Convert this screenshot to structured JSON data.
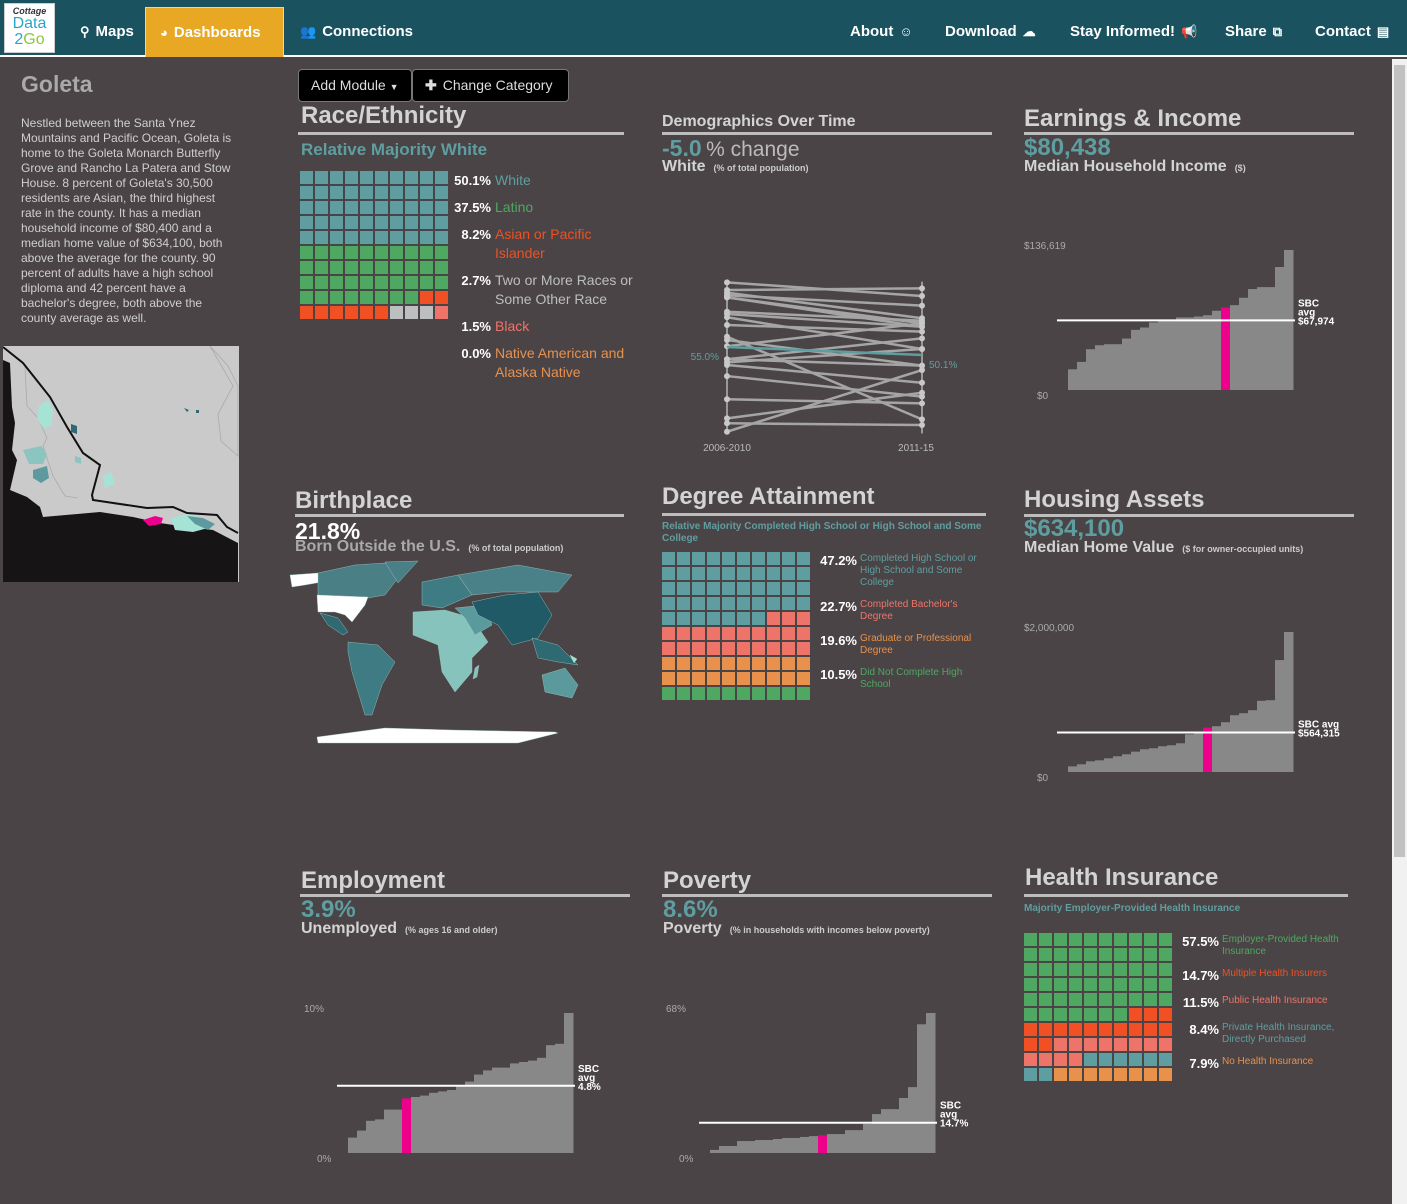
{
  "nav": {
    "logo": {
      "line1": "Cottage",
      "line2": "Data",
      "line3a": "2",
      "line3b": "Go"
    },
    "left": [
      {
        "label": "Maps",
        "icon": "map-marker-icon",
        "glyph": "⚲"
      },
      {
        "label": "Dashboards",
        "icon": "dashboard-icon",
        "glyph": "◕",
        "active": true
      },
      {
        "label": "Connections",
        "icon": "users-icon",
        "glyph": "👥"
      }
    ],
    "right": [
      {
        "label": "About",
        "icon": "user-circle-icon",
        "glyph": "☺"
      },
      {
        "label": "Download",
        "icon": "cloud-download-icon",
        "glyph": "☁"
      },
      {
        "label": "Stay Informed!",
        "icon": "bullhorn-icon",
        "glyph": "📢"
      },
      {
        "label": "Share",
        "icon": "share-square-icon",
        "glyph": "⧉"
      },
      {
        "label": "Contact",
        "icon": "address-card-icon",
        "glyph": "▤"
      }
    ],
    "colors": {
      "bar": "#1a5260",
      "active": "#e8a823"
    }
  },
  "sidebar": {
    "place": "Goleta",
    "description": "Nestled between the Santa Ynez Mountains and Pacific Ocean, Goleta is home to the Goleta Monarch Butterfly Grove and Rancho La Patera and Stow House. 8 percent of Goleta's 30,500 residents are Asian, the third highest rate in the county. It has a median household income of $80,400 and a median home value of $634,100, both above the average for the county. 90 percent of adults have a high school diploma and 42 percent have a bachelor's degree, both above the county average as well."
  },
  "toolbar": {
    "add_module": "Add Module",
    "change_category": "Change Category"
  },
  "race": {
    "title": "Race/Ethnicity",
    "subtitle": "Relative Majority White",
    "items": [
      {
        "value": "50.1%",
        "label": "White",
        "color": "#5f9ea0",
        "cells": 50
      },
      {
        "value": "37.5%",
        "label": "Latino",
        "color": "#4fa862",
        "cells": 38
      },
      {
        "value": "8.2%",
        "label": "Asian or Pacific Islander",
        "color": "#f05023",
        "cells": 8
      },
      {
        "value": "2.7%",
        "label": "Two or More Races or Some Other Race",
        "color": "#bdbec0",
        "cells": 3
      },
      {
        "value": "1.5%",
        "label": "Black",
        "color": "#ee746a",
        "cells": 1
      },
      {
        "value": "0.0%",
        "label": "Native American and Alaska Native",
        "color": "#e8914d",
        "cells": 0
      }
    ]
  },
  "demographics": {
    "title": "Demographics Over Time",
    "change_value": "-5.0",
    "change_suffix": "% change",
    "group": "White",
    "note": "(% of total population)",
    "chart_data": {
      "type": "line",
      "x": [
        "2006-2010",
        "2011-15"
      ],
      "highlight": {
        "start": 55.0,
        "end": 50.1,
        "start_label": "55.0%",
        "end_label": "50.1%",
        "color": "#5f9ea0"
      },
      "others": [
        [
          94.6,
          86.2
        ],
        [
          89.9,
          90.9
        ],
        [
          88.3,
          72.6
        ],
        [
          86.7,
          80.3
        ],
        [
          85.4,
          69.5
        ],
        [
          76.6,
          71.1
        ],
        [
          75.2,
          67.4
        ],
        [
          73.2,
          53.8
        ],
        [
          68.5,
          64.4
        ],
        [
          61.3,
          10.7
        ],
        [
          59.3,
          43.6
        ],
        [
          47.5,
          60.3
        ],
        [
          45.6,
          53.8
        ],
        [
          44.0,
          33.1
        ],
        [
          37.2,
          24.6
        ],
        [
          23.0,
          20.5
        ],
        [
          11.3,
          27.0
        ],
        [
          8.3,
          7.2
        ],
        [
          3.1,
          40.9
        ],
        [
          55.5,
          69.5
        ],
        [
          85.4,
          67.4
        ],
        [
          47.5,
          43.6
        ]
      ]
    }
  },
  "earnings": {
    "title": "Earnings & Income",
    "value": "$80,438",
    "label": "Median Household Income",
    "note": "($)",
    "chart_data": {
      "type": "bar",
      "ymax": 136619,
      "ymax_label": "$136,619",
      "ymin_label": "$0",
      "values": [
        20200,
        27400,
        39800,
        43700,
        44700,
        44700,
        50200,
        58700,
        61000,
        65900,
        67200,
        67200,
        70800,
        70800,
        71700,
        73000,
        77300,
        80438,
        82800,
        90000,
        98500,
        100400,
        100400,
        120000,
        136619
      ],
      "highlight_index": 17,
      "avg": 67974,
      "avg_label": [
        "SBC",
        "avg",
        "$67,974"
      ]
    }
  },
  "birthplace": {
    "title": "Birthplace",
    "value": "21.8%",
    "label": "Born Outside the U.S.",
    "note": "(% of total population)"
  },
  "degree": {
    "title": "Degree Attainment",
    "subtitle": "Relative Majority Completed High School or High School and Some College",
    "items": [
      {
        "value": "47.2%",
        "label": "Completed High School or High School and Some College",
        "color": "#5f9ea0",
        "cells": 47
      },
      {
        "value": "22.7%",
        "label": "Completed Bachelor's Degree",
        "color": "#ee746a",
        "cells": 23
      },
      {
        "value": "19.6%",
        "label": "Graduate or Professional Degree",
        "color": "#e8914d",
        "cells": 20
      },
      {
        "value": "10.5%",
        "label": "Did Not Complete High School",
        "color": "#4fa862",
        "cells": 10
      }
    ]
  },
  "housing": {
    "title": "Housing Assets",
    "value": "$634,100",
    "label": "Median Home Value",
    "note": "($ for owner-occupied units)",
    "chart_data": {
      "type": "bar",
      "ymax": 2000000,
      "ymax_label": "$2,000,000",
      "ymin_label": "$0",
      "values": [
        81000,
        110000,
        153000,
        167000,
        196000,
        224000,
        253000,
        291000,
        325000,
        339000,
        368000,
        382000,
        410000,
        539000,
        568000,
        634100,
        654000,
        711000,
        811000,
        840000,
        883000,
        1017000,
        1026000,
        1599000,
        2000000
      ],
      "highlight_index": 15,
      "avg": 564315,
      "avg_label": [
        "SBC avg",
        "$564,315"
      ]
    }
  },
  "employment": {
    "title": "Employment",
    "value": "3.9%",
    "label": "Unemployed",
    "note": "(% ages 16 and older)",
    "chart_data": {
      "type": "bar",
      "ymax": 10,
      "ymax_label": "10%",
      "ymin_label": "0%",
      "values": [
        1.1,
        1.6,
        2.3,
        2.4,
        3.1,
        3.1,
        3.9,
        4.0,
        4.1,
        4.3,
        4.4,
        4.5,
        4.8,
        5.1,
        5.6,
        5.9,
        6.1,
        6.1,
        6.4,
        6.5,
        6.6,
        6.8,
        7.7,
        7.8,
        10.0
      ],
      "highlight_index": 6,
      "avg": 4.8,
      "avg_label": [
        "SBC",
        "avg",
        "4.8%"
      ]
    }
  },
  "poverty": {
    "title": "Poverty",
    "value": "8.6%",
    "label": "Poverty",
    "note": "(% in households with incomes below poverty)",
    "chart_data": {
      "type": "bar",
      "ymax": 68,
      "ymax_label": "68%",
      "ymin_label": "0%",
      "values": [
        1.5,
        3.4,
        3.4,
        5.8,
        5.8,
        6.3,
        6.3,
        6.8,
        7.3,
        7.3,
        7.8,
        8.2,
        8.6,
        9.2,
        9.2,
        11.1,
        11.1,
        14.1,
        18.9,
        21.3,
        21.3,
        26.7,
        32.0,
        62.5,
        68.0
      ],
      "highlight_index": 12,
      "avg": 14.7,
      "avg_label": [
        "SBC",
        "avg",
        "14.7%"
      ]
    }
  },
  "health": {
    "title": "Health Insurance",
    "subtitle": "Majority Employer-Provided Health Insurance",
    "items": [
      {
        "value": "57.5%",
        "label": "Employer-Provided Health Insurance",
        "color": "#4fa862",
        "cells": 57
      },
      {
        "value": "14.7%",
        "label": "Multiple Health Insurers",
        "color": "#f05023",
        "cells": 15
      },
      {
        "value": "11.5%",
        "label": "Public Health Insurance",
        "color": "#ee746a",
        "cells": 12
      },
      {
        "value": "8.4%",
        "label": "Private Health Insurance, Directly Purchased",
        "color": "#5f9ea0",
        "cells": 8
      },
      {
        "value": "7.9%",
        "label": "No Health Insurance",
        "color": "#e8914d",
        "cells": 8
      }
    ]
  },
  "colors": {
    "highlight_bar": "#ec008c",
    "bar": "#888888",
    "background": "#4a4446"
  }
}
